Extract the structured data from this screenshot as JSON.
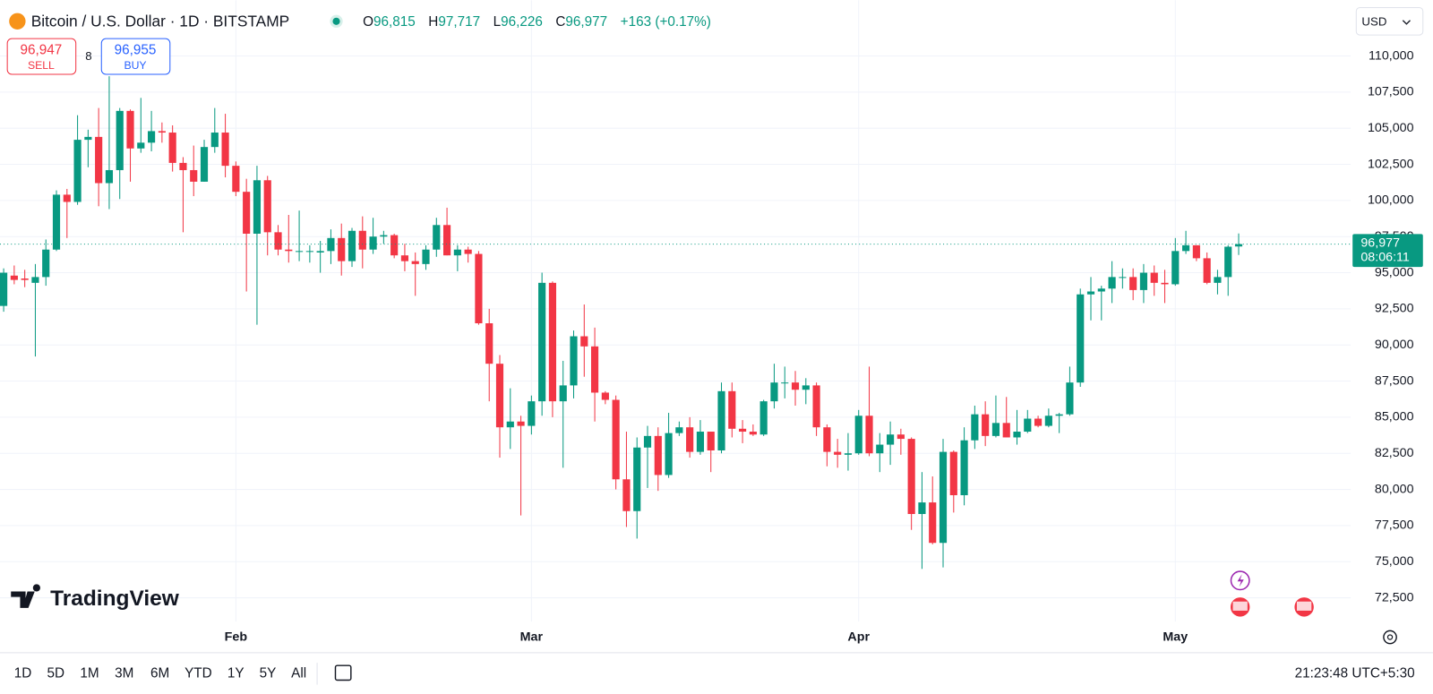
{
  "header": {
    "symbol": "Bitcoin / U.S. Dollar · 1D · BITSTAMP",
    "ohlc": [
      {
        "key": "O",
        "value": "96,815"
      },
      {
        "key": "H",
        "value": "97,717"
      },
      {
        "key": "L",
        "value": "96,226"
      },
      {
        "key": "C",
        "value": "96,977"
      }
    ],
    "change": "+163 (+0.17%)"
  },
  "trade": {
    "sell_price": "96,947",
    "sell_label": "SELL",
    "spread": "8",
    "buy_price": "96,955",
    "buy_label": "BUY"
  },
  "currency": "USD",
  "watermark": "TradingView",
  "timeframes": [
    "1D",
    "5D",
    "1M",
    "3M",
    "6M",
    "YTD",
    "1Y",
    "5Y",
    "All"
  ],
  "clock": "21:23:48 UTC+5:30",
  "chart_data": {
    "type": "candlestick",
    "categories": [
      null,
      null,
      null,
      null,
      null,
      null,
      null,
      null,
      null,
      null,
      null,
      null,
      null,
      null,
      null,
      null,
      null,
      null,
      null,
      null,
      null,
      null,
      "Feb",
      null,
      null,
      null,
      null,
      null,
      null,
      null,
      null,
      null,
      null,
      null,
      null,
      null,
      null,
      null,
      null,
      null,
      null,
      null,
      null,
      null,
      null,
      null,
      null,
      null,
      null,
      null,
      "Mar",
      null,
      null,
      null,
      null,
      null,
      null,
      null,
      null,
      null,
      null,
      null,
      null,
      null,
      null,
      null,
      null,
      null,
      null,
      null,
      null,
      null,
      null,
      null,
      null,
      null,
      null,
      null,
      null,
      null,
      null,
      "Apr",
      null,
      null,
      null,
      null,
      null,
      null,
      null,
      null,
      null,
      null,
      null,
      null,
      null,
      null,
      null,
      null,
      null,
      null,
      null,
      null,
      null,
      null,
      null,
      null,
      null,
      null,
      null,
      null,
      null,
      "May",
      null,
      null,
      null,
      null,
      null,
      null
    ],
    "open": [
      92700,
      94800,
      94600,
      94300,
      94700,
      96600,
      100400,
      99900,
      104200,
      104400,
      101200,
      102100,
      106200,
      103600,
      104000,
      104800,
      104700,
      102600,
      102100,
      101300,
      103700,
      104700,
      102400,
      100600,
      97700,
      101400,
      97800,
      96600,
      96500,
      96500,
      96400,
      96500,
      97400,
      95800,
      97900,
      96600,
      97500,
      97600,
      96200,
      95800,
      95600,
      96600,
      98300,
      96200,
      96600,
      96300,
      91500,
      88700,
      84300,
      84700,
      84400,
      86100,
      94300,
      86100,
      87200,
      90600,
      89900,
      86700,
      86200,
      80700,
      78500,
      82900,
      83700,
      81000,
      83900,
      84300,
      82600,
      84000,
      82700,
      86800,
      84200,
      84000,
      83800,
      86100,
      87400,
      87400,
      86900,
      87200,
      84300,
      82600,
      82400,
      82500,
      85100,
      82500,
      83100,
      83800,
      83500,
      78300,
      79100,
      76300,
      82600,
      79600,
      83400,
      85200,
      83700,
      84600,
      83600,
      84000,
      84900,
      84400,
      85100,
      85200,
      87400,
      93500,
      93700,
      93900,
      94700,
      94700,
      93800,
      95000,
      94300,
      94200,
      96500,
      96900,
      96000,
      94300,
      94700,
      96815
    ],
    "high": [
      95300,
      95500,
      95200,
      95600,
      97300,
      100700,
      100800,
      105900,
      104900,
      106400,
      108600,
      106400,
      106300,
      107100,
      106200,
      105400,
      105200,
      103000,
      103800,
      104200,
      106400,
      106000,
      102700,
      101500,
      102400,
      101700,
      98300,
      99000,
      99300,
      96900,
      97200,
      98000,
      98400,
      98100,
      98900,
      98800,
      97900,
      97700,
      97000,
      96400,
      96900,
      98800,
      99500,
      96900,
      96800,
      96500,
      92500,
      89300,
      87000,
      85100,
      86500,
      95000,
      94400,
      88900,
      91000,
      92800,
      91200,
      86800,
      86500,
      84000,
      83600,
      84400,
      84300,
      85300,
      84700,
      85000,
      84800,
      84000,
      87400,
      87400,
      84800,
      84500,
      86200,
      88700,
      88500,
      88200,
      87700,
      87400,
      84500,
      83500,
      83900,
      85500,
      88500,
      83900,
      84700,
      84200,
      83600,
      81200,
      80900,
      83500,
      82700,
      84300,
      85800,
      86100,
      86500,
      86400,
      85500,
      85500,
      85100,
      85600,
      85300,
      88500,
      93900,
      94700,
      94100,
      95800,
      95300,
      95300,
      95600,
      95500,
      95200,
      97400,
      97900,
      96900,
      96400,
      95200,
      96900,
      97717
    ],
    "low": [
      92300,
      94200,
      94000,
      89200,
      94100,
      96500,
      97400,
      99700,
      102300,
      99600,
      99400,
      100100,
      101300,
      103300,
      103400,
      104000,
      102000,
      97800,
      100300,
      101300,
      103300,
      101600,
      100300,
      93700,
      91400,
      96200,
      96200,
      95700,
      95800,
      95700,
      95000,
      95600,
      94800,
      95400,
      95300,
      96300,
      97000,
      96000,
      95100,
      93400,
      95200,
      96100,
      96200,
      95100,
      95700,
      91400,
      86100,
      82200,
      82800,
      78200,
      83800,
      85100,
      85000,
      81500,
      86300,
      87800,
      84700,
      85900,
      80000,
      77400,
      76600,
      80100,
      79900,
      80800,
      83700,
      82200,
      82400,
      81200,
      82500,
      83600,
      83200,
      83700,
      83700,
      85600,
      86300,
      85800,
      85900,
      83700,
      81600,
      81500,
      81300,
      82400,
      82300,
      81200,
      81700,
      82400,
      77200,
      74500,
      76200,
      74600,
      78400,
      78900,
      82800,
      83000,
      83600,
      83600,
      83100,
      83900,
      84300,
      84300,
      83900,
      85100,
      87100,
      91700,
      91700,
      92900,
      93900,
      93100,
      92900,
      93400,
      92900,
      94100,
      96300,
      95800,
      94200,
      93500,
      93400,
      96226
    ],
    "close": [
      95000,
      94500,
      94500,
      94700,
      96600,
      100400,
      99900,
      104200,
      104400,
      101200,
      102100,
      106200,
      103600,
      104000,
      104800,
      104700,
      102600,
      102100,
      101300,
      103700,
      104700,
      102400,
      100600,
      97700,
      101400,
      97800,
      96600,
      96500,
      96500,
      96500,
      96500,
      97400,
      95800,
      97900,
      96600,
      97500,
      97600,
      96200,
      95800,
      95600,
      96600,
      98300,
      96200,
      96600,
      96300,
      91500,
      88700,
      84300,
      84700,
      84400,
      86100,
      94300,
      86100,
      87200,
      90600,
      89900,
      86700,
      86200,
      80700,
      78500,
      82900,
      83700,
      81000,
      83900,
      84300,
      82600,
      84000,
      82700,
      86800,
      84200,
      84000,
      83800,
      86100,
      87400,
      87400,
      86900,
      87200,
      84300,
      82600,
      82400,
      82500,
      85100,
      82500,
      83100,
      83800,
      83500,
      78300,
      79100,
      76300,
      82600,
      79600,
      83400,
      85200,
      83700,
      84600,
      83600,
      84000,
      84900,
      84400,
      85100,
      85200,
      87400,
      93500,
      93700,
      93900,
      94700,
      94700,
      93800,
      95000,
      94300,
      94200,
      96500,
      96900,
      96000,
      94300,
      94700,
      96800,
      96977
    ],
    "up_color": "#089981",
    "down_color": "#f23645",
    "ylim": [
      70850,
      113540
    ],
    "yticks": [
      {
        "value": 72500,
        "label": "72,500"
      },
      {
        "value": 75000,
        "label": "75,000"
      },
      {
        "value": 77500,
        "label": "77,500"
      },
      {
        "value": 80000,
        "label": "80,000"
      },
      {
        "value": 82500,
        "label": "82,500"
      },
      {
        "value": 85000,
        "label": "85,000"
      },
      {
        "value": 87500,
        "label": "87,500"
      },
      {
        "value": 90000,
        "label": "90,000"
      },
      {
        "value": 92500,
        "label": "92,500"
      },
      {
        "value": 95000,
        "label": "95,000"
      },
      {
        "value": 97500,
        "label": "97,500"
      },
      {
        "value": 100000,
        "label": "100,000"
      },
      {
        "value": 102500,
        "label": "102,500"
      },
      {
        "value": 105000,
        "label": "105,000"
      },
      {
        "value": 107500,
        "label": "107,500"
      },
      {
        "value": 110000,
        "label": "110,000"
      }
    ],
    "grid": true,
    "last_price": {
      "value": 96977,
      "label": "96,977"
    },
    "countdown": "08:06:11"
  }
}
